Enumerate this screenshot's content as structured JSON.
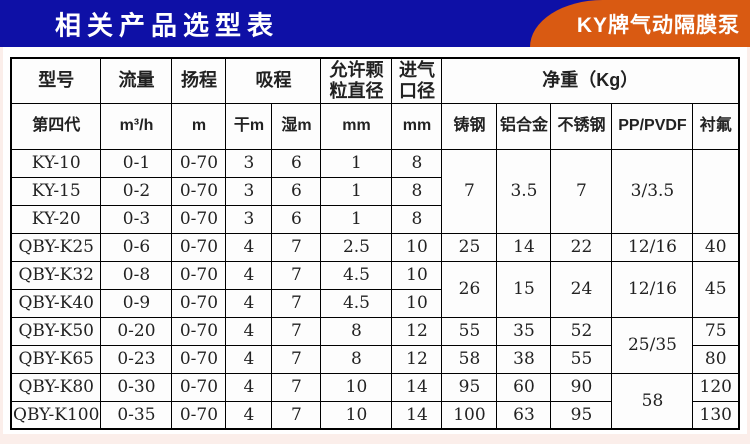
{
  "banner": {
    "title": "相关产品选型表",
    "badge": "KY牌气动隔膜泵",
    "colors": {
      "blue": "#0e10a6",
      "orange": "#d95a12"
    }
  },
  "table": {
    "header_row1": [
      {
        "label": "型号",
        "colspan": 1
      },
      {
        "label": "流量",
        "colspan": 1
      },
      {
        "label": "扬程",
        "colspan": 1
      },
      {
        "label": "吸程",
        "colspan": 2
      },
      {
        "label": "允许颗粒直径",
        "colspan": 1
      },
      {
        "label": "进气口径",
        "colspan": 1
      },
      {
        "label": "净重（Kg）",
        "colspan": 5
      }
    ],
    "header_row2": [
      "第四代",
      "m³/h",
      "m",
      "干m",
      "湿m",
      "mm",
      "mm",
      "铸钢",
      "铝合金",
      "不锈钢",
      "PP/PVDF",
      "衬氟"
    ],
    "rows": [
      [
        "KY-10",
        "0-1",
        "0-70",
        "3",
        "6",
        "1",
        "8",
        {
          "t": "7",
          "rs": 3
        },
        {
          "t": "3.5",
          "rs": 3
        },
        {
          "t": "7",
          "rs": 3
        },
        {
          "t": "3/3.5",
          "rs": 3
        },
        {
          "t": "",
          "rs": 3
        }
      ],
      [
        "KY-15",
        "0-2",
        "0-70",
        "3",
        "6",
        "1",
        "8"
      ],
      [
        "KY-20",
        "0-3",
        "0-70",
        "3",
        "6",
        "1",
        "8"
      ],
      [
        "QBY-K25",
        "0-6",
        "0-70",
        "4",
        "7",
        "2.5",
        "10",
        "25",
        "14",
        "22",
        "12/16",
        "40"
      ],
      [
        "QBY-K32",
        "0-8",
        "0-70",
        "4",
        "7",
        "4.5",
        "10",
        {
          "t": "26",
          "rs": 2
        },
        {
          "t": "15",
          "rs": 2
        },
        {
          "t": "24",
          "rs": 2
        },
        {
          "t": "12/16",
          "rs": 2
        },
        {
          "t": "45",
          "rs": 2
        }
      ],
      [
        "QBY-K40",
        "0-9",
        "0-70",
        "4",
        "7",
        "4.5",
        "10"
      ],
      [
        "QBY-K50",
        "0-20",
        "0-70",
        "4",
        "7",
        "8",
        "12",
        "55",
        "35",
        "52",
        {
          "t": "25/35",
          "rs": 2
        },
        "75"
      ],
      [
        "QBY-K65",
        "0-23",
        "0-70",
        "4",
        "7",
        "8",
        "12",
        "58",
        "38",
        "55",
        "80"
      ],
      [
        "QBY-K80",
        "0-30",
        "0-70",
        "4",
        "7",
        "10",
        "14",
        "95",
        "60",
        "90",
        {
          "t": "58",
          "rs": 2
        },
        "120"
      ],
      [
        "QBY-K100",
        "0-35",
        "0-70",
        "4",
        "7",
        "10",
        "14",
        "100",
        "63",
        "95",
        "130"
      ]
    ]
  }
}
